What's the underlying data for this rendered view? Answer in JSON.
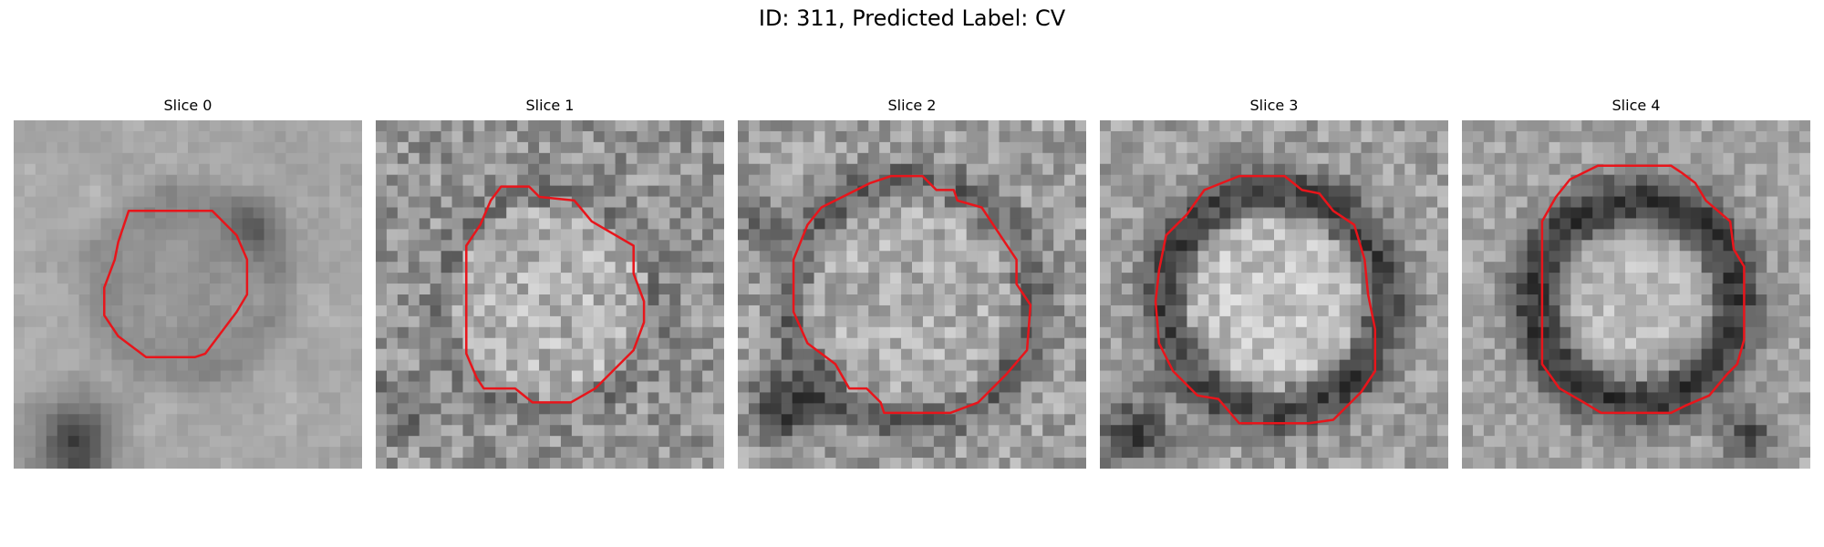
{
  "figure": {
    "title": "ID: 311, Predicted Label: CV"
  },
  "slices": [
    {
      "title": "Slice 0"
    },
    {
      "title": "Slice 1"
    },
    {
      "title": "Slice 2"
    },
    {
      "title": "Slice 3"
    },
    {
      "title": "Slice 4"
    }
  ],
  "colors": {
    "contour": "#e8151b",
    "background": "#ffffff"
  }
}
